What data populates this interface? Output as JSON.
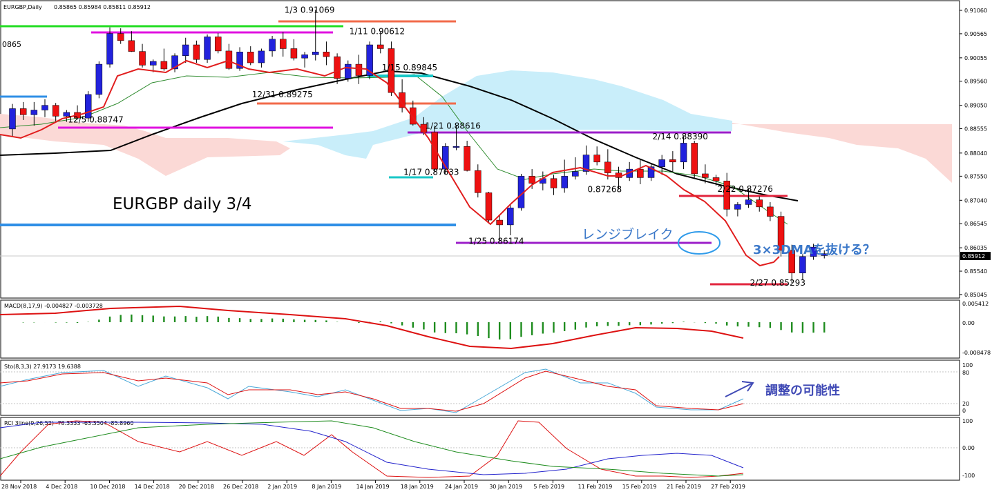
{
  "header": {
    "symbol": "EURGBP,Daily",
    "ohlc": "0.85865 0.85984 0.85811 0.85912",
    "left_clip": "0865"
  },
  "annotations": {
    "title": "EURGBP daily 3/4",
    "range_break": "レンジブレイク",
    "dma_note": "3×3DMAを抜ける？",
    "adjust_note": "調整の可能性"
  },
  "price_labels": [
    {
      "text": "1/3 0.91069",
      "d": 28,
      "p": 0.91069
    },
    {
      "text": "1/11 0.90612",
      "d": 34,
      "p": 0.90612
    },
    {
      "text": "1/15 0.89845",
      "d": 37,
      "p": 0.89845
    },
    {
      "text": "12/31 0.89275",
      "d": 25,
      "p": 0.89275
    },
    {
      "text": "12/5 0.88747",
      "d": 8,
      "p": 0.88747
    },
    {
      "text": "1/21 0.88616",
      "d": 41,
      "p": 0.88616
    },
    {
      "text": "2/14 0.88390",
      "d": 62,
      "p": 0.8839
    },
    {
      "text": "1/17 0.87633",
      "d": 39,
      "p": 0.87633
    },
    {
      "text": "0.87268",
      "d": 56,
      "p": 0.87268
    },
    {
      "text": "2/22 0.87276",
      "d": 68,
      "p": 0.87276
    },
    {
      "text": "1/25 0.86174",
      "d": 45,
      "p": 0.86174
    },
    {
      "text": "2/27 0.85293",
      "d": 71,
      "p": 0.85293
    }
  ],
  "axes": {
    "price_ticks": [
      "0.91060",
      "0.90565",
      "0.90055",
      "0.89560",
      "0.89050",
      "0.88555",
      "0.88040",
      "0.87550",
      "0.87040",
      "0.86545",
      "0.86035",
      "0.85540",
      "0.85045"
    ],
    "current_price": "0.85912",
    "macd_ticks": [
      "0.005412",
      "0.00",
      "-0.008478"
    ],
    "sto_ticks": [
      "100",
      "80",
      "20",
      "0"
    ],
    "rci_ticks": [
      "100",
      "0.00",
      "-100"
    ],
    "date_labels": [
      "28 Nov 2018",
      "4 Dec 2018",
      "10 Dec 2018",
      "14 Dec 2018",
      "20 Dec 2018",
      "26 Dec 2018",
      "2 Jan 2019",
      "8 Jan 2019",
      "14 Jan 2019",
      "18 Jan 2019",
      "24 Jan 2019",
      "30 Jan 2019",
      "5 Feb 2019",
      "11 Feb 2019",
      "15 Feb 2019",
      "21 Feb 2019",
      "27 Feb 2019"
    ]
  },
  "panels": {
    "macd": "MACD(8,17,9) -0.004827 -0.003728",
    "sto": "Sto(8,3,3) 27.9173 19.6388",
    "rci": "RCI 3line(9,26,52) -78.3333 -63.3504 -85.8960"
  },
  "chart_data": {
    "type": "candlestick",
    "symbol": "EURGBP",
    "timeframe": "Daily",
    "price_range": [
      0.85,
      0.9125
    ],
    "candles": [
      [
        0.8855,
        0.8908,
        0.8838,
        0.8898
      ],
      [
        0.8898,
        0.8912,
        0.8874,
        0.8885
      ],
      [
        0.8885,
        0.8912,
        0.8862,
        0.8895
      ],
      [
        0.8895,
        0.8918,
        0.888,
        0.8905
      ],
      [
        0.8905,
        0.891,
        0.8868,
        0.8882
      ],
      [
        0.8882,
        0.8895,
        0.887,
        0.889
      ],
      [
        0.889,
        0.8905,
        0.8875,
        0.8878
      ],
      [
        0.8878,
        0.8935,
        0.887,
        0.8928
      ],
      [
        0.8928,
        0.8998,
        0.892,
        0.8992
      ],
      [
        0.8992,
        0.907,
        0.8985,
        0.9057
      ],
      [
        0.9057,
        0.9068,
        0.9035,
        0.9042
      ],
      [
        0.9042,
        0.9062,
        0.9018,
        0.9019
      ],
      [
        0.9019,
        0.9035,
        0.8985,
        0.899
      ],
      [
        0.899,
        0.9002,
        0.8975,
        0.8998
      ],
      [
        0.8998,
        0.9025,
        0.8978,
        0.8982
      ],
      [
        0.8982,
        0.9015,
        0.8975,
        0.901
      ],
      [
        0.901,
        0.9048,
        0.8995,
        0.9033
      ],
      [
        0.9033,
        0.9042,
        0.8995,
        0.9002
      ],
      [
        0.9002,
        0.9055,
        0.8995,
        0.905
      ],
      [
        0.905,
        0.9058,
        0.9015,
        0.902
      ],
      [
        0.902,
        0.9035,
        0.898,
        0.8983
      ],
      [
        0.8983,
        0.9028,
        0.8978,
        0.9018
      ],
      [
        0.9018,
        0.903,
        0.899,
        0.8995
      ],
      [
        0.8995,
        0.9025,
        0.8985,
        0.902
      ],
      [
        0.902,
        0.9052,
        0.9008,
        0.9045
      ],
      [
        0.9045,
        0.906,
        0.9008,
        0.9025
      ],
      [
        0.9025,
        0.9045,
        0.9,
        0.9005
      ],
      [
        0.9005,
        0.9018,
        0.8985,
        0.9012
      ],
      [
        0.9012,
        0.9107,
        0.9,
        0.9018
      ],
      [
        0.9018,
        0.904,
        0.899,
        0.9008
      ],
      [
        0.9008,
        0.9015,
        0.895,
        0.8962
      ],
      [
        0.8962,
        0.9,
        0.8955,
        0.8992
      ],
      [
        0.8992,
        0.9012,
        0.895,
        0.8968
      ],
      [
        0.8968,
        0.904,
        0.896,
        0.9033
      ],
      [
        0.9033,
        0.9061,
        0.9015,
        0.9025
      ],
      [
        0.9025,
        0.904,
        0.8925,
        0.8932
      ],
      [
        0.8932,
        0.896,
        0.889,
        0.89
      ],
      [
        0.89,
        0.8915,
        0.8862,
        0.8865
      ],
      [
        0.8865,
        0.888,
        0.8842,
        0.8848
      ],
      [
        0.8848,
        0.8862,
        0.8763,
        0.877
      ],
      [
        0.877,
        0.8825,
        0.876,
        0.8818
      ],
      [
        0.8818,
        0.8862,
        0.881,
        0.8818
      ],
      [
        0.8818,
        0.883,
        0.8765,
        0.8767
      ],
      [
        0.8767,
        0.878,
        0.871,
        0.872
      ],
      [
        0.872,
        0.8722,
        0.8658,
        0.8662
      ],
      [
        0.8662,
        0.8672,
        0.8617,
        0.8652
      ],
      [
        0.8652,
        0.8695,
        0.863,
        0.8688
      ],
      [
        0.8688,
        0.876,
        0.8682,
        0.8755
      ],
      [
        0.8755,
        0.877,
        0.8728,
        0.874
      ],
      [
        0.874,
        0.8765,
        0.8725,
        0.875
      ],
      [
        0.875,
        0.8758,
        0.8715,
        0.873
      ],
      [
        0.873,
        0.879,
        0.872,
        0.8755
      ],
      [
        0.8755,
        0.8795,
        0.8748,
        0.8765
      ],
      [
        0.8765,
        0.882,
        0.8758,
        0.88
      ],
      [
        0.88,
        0.8818,
        0.8778,
        0.8785
      ],
      [
        0.8785,
        0.8812,
        0.8748,
        0.8762
      ],
      [
        0.8762,
        0.8775,
        0.8727,
        0.8752
      ],
      [
        0.8752,
        0.8785,
        0.8745,
        0.877
      ],
      [
        0.877,
        0.879,
        0.8738,
        0.8752
      ],
      [
        0.8752,
        0.8782,
        0.8745,
        0.8775
      ],
      [
        0.8775,
        0.88,
        0.8758,
        0.879
      ],
      [
        0.879,
        0.8808,
        0.8765,
        0.8785
      ],
      [
        0.8785,
        0.8839,
        0.877,
        0.8825
      ],
      [
        0.8825,
        0.883,
        0.8752,
        0.876
      ],
      [
        0.876,
        0.878,
        0.874,
        0.8752
      ],
      [
        0.8752,
        0.8758,
        0.8735,
        0.8745
      ],
      [
        0.8745,
        0.8762,
        0.867,
        0.8685
      ],
      [
        0.8685,
        0.87,
        0.867,
        0.8695
      ],
      [
        0.8695,
        0.8728,
        0.8688,
        0.8705
      ],
      [
        0.8705,
        0.8712,
        0.868,
        0.869
      ],
      [
        0.869,
        0.87,
        0.866,
        0.867
      ],
      [
        0.867,
        0.868,
        0.8585,
        0.8598
      ],
      [
        0.8598,
        0.861,
        0.8529,
        0.855
      ],
      [
        0.855,
        0.859,
        0.8535,
        0.8585
      ],
      [
        0.8585,
        0.8612,
        0.8578,
        0.8605
      ],
      [
        0.8587,
        0.8598,
        0.8581,
        0.8591
      ]
    ],
    "indicators": [
      "Ichimoku cloud",
      "3x3 DMA",
      "moving averages"
    ],
    "subpanels": [
      "MACD(8,17,9)",
      "Sto(8,3,3)",
      "RCI 3line(9,26,52)"
    ]
  },
  "colors": {
    "bull": "#2222dd",
    "bear": "#ee1111",
    "cloud_up": "#c9eefa",
    "cloud_down": "#fbd9d6",
    "macd_hist": "#1e8c1e",
    "signal": "#dd1111",
    "annotation_blue": "#3b78c9",
    "annotation_navy": "#3f49b5"
  }
}
